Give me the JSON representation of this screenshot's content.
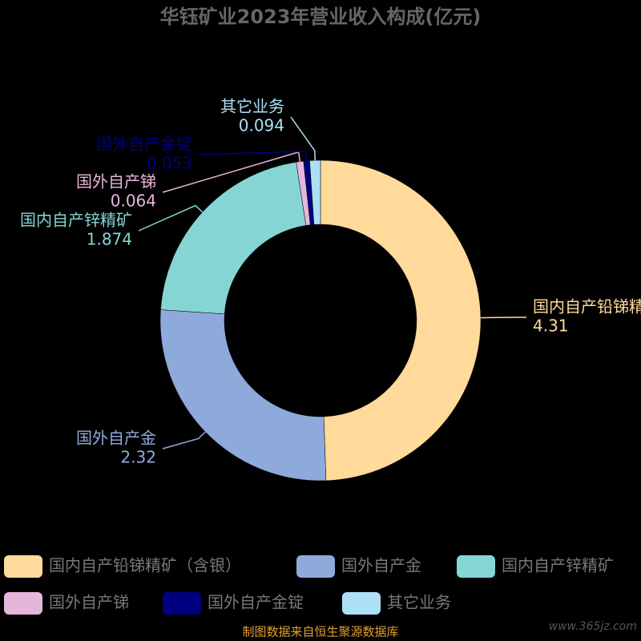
{
  "chart_data": {
    "type": "donut",
    "title": "华钰矿业2023年营业收入构成(亿元)",
    "categories": [
      "国内自产铅锑精矿（含银）",
      "国外自产金",
      "国内自产锌精矿",
      "国外自产锑",
      "国外自产金锭",
      "其它业务"
    ],
    "values": [
      4.31,
      2.32,
      1.874,
      0.064,
      0.053,
      0.094
    ],
    "colors": [
      "#ffda9b",
      "#8eaadb",
      "#86d5d5",
      "#e6b6da",
      "#000080",
      "#addff7"
    ],
    "source": "制图数据来自恒生聚源数据库",
    "watermark": "www.365jz.com"
  }
}
